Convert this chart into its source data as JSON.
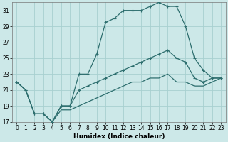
{
  "xlabel": "Humidex (Indice chaleur)",
  "xlim_min": -0.5,
  "xlim_max": 23.5,
  "ylim_min": 17,
  "ylim_max": 32,
  "yticks": [
    17,
    19,
    21,
    23,
    25,
    27,
    29,
    31
  ],
  "xticks": [
    0,
    1,
    2,
    3,
    4,
    5,
    6,
    7,
    8,
    9,
    10,
    11,
    12,
    13,
    14,
    15,
    16,
    17,
    18,
    19,
    20,
    21,
    22,
    23
  ],
  "background_color": "#cce8e8",
  "grid_color": "#a8d0d0",
  "line_color": "#2d6e6e",
  "line1_x": [
    0,
    1,
    2,
    3,
    4,
    5,
    6,
    7,
    8,
    9,
    10,
    11,
    12,
    13,
    14,
    15,
    16,
    17,
    18,
    19,
    20,
    21,
    22,
    23
  ],
  "line1_y": [
    22,
    21,
    18,
    18,
    17,
    19,
    19,
    23,
    23,
    25.5,
    29.5,
    30,
    31,
    31,
    31,
    31.5,
    32,
    31.5,
    31.5,
    29,
    25,
    23.5,
    22.5,
    22.5
  ],
  "line2_x": [
    0,
    1,
    2,
    3,
    4,
    5,
    6,
    7,
    8,
    9,
    10,
    11,
    12,
    13,
    14,
    15,
    16,
    17,
    18,
    19,
    20,
    21,
    22,
    23
  ],
  "line2_y": [
    22,
    21,
    18,
    18,
    17,
    19,
    19,
    21,
    21.5,
    22,
    22.5,
    23,
    23.5,
    24,
    24.5,
    25,
    25.5,
    26,
    25,
    24.5,
    22.5,
    22,
    22.5,
    22.5
  ],
  "line3_x": [
    0,
    1,
    2,
    3,
    4,
    5,
    6,
    7,
    8,
    9,
    10,
    11,
    12,
    13,
    14,
    15,
    16,
    17,
    18,
    19,
    20,
    21,
    22,
    23
  ],
  "line3_y": [
    22,
    21,
    18,
    18,
    17,
    18.5,
    18.5,
    19,
    19.5,
    20,
    20.5,
    21,
    21.5,
    22,
    22,
    22.5,
    22.5,
    23,
    22,
    22,
    21.5,
    21.5,
    22,
    22.5
  ],
  "tick_fontsize": 5.5,
  "xlabel_fontsize": 6.5
}
